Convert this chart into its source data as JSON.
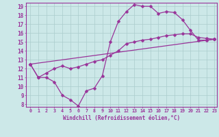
{
  "bg_color": "#cce8e8",
  "line_color": "#993399",
  "grid_color": "#aacccc",
  "xlabel": "Windchill (Refroidissement éolien,°C)",
  "xlabel_color": "#993399",
  "tick_color": "#993399",
  "xmin": 0,
  "xmax": 23,
  "ymin": 8,
  "ymax": 19,
  "line1_x": [
    0,
    1,
    2,
    3,
    4,
    5,
    6,
    7,
    8,
    9,
    10,
    11,
    12,
    13,
    14,
    15,
    16,
    17,
    18,
    19,
    20,
    21,
    22,
    23
  ],
  "line1_y": [
    12.5,
    11.0,
    11.0,
    10.5,
    9.0,
    8.5,
    7.8,
    9.5,
    9.8,
    11.2,
    15.0,
    17.3,
    18.4,
    19.2,
    19.0,
    19.0,
    18.2,
    18.4,
    18.3,
    17.5,
    16.3,
    15.2,
    15.2,
    15.3
  ],
  "line2_x": [
    0,
    1,
    2,
    3,
    4,
    5,
    6,
    7,
    8,
    9,
    10,
    11,
    12,
    13,
    14,
    15,
    16,
    17,
    18,
    19,
    20,
    21,
    22,
    23
  ],
  "line2_y": [
    12.5,
    11.0,
    11.5,
    12.0,
    12.3,
    12.0,
    12.2,
    12.5,
    12.8,
    13.0,
    13.5,
    14.0,
    14.8,
    15.0,
    15.2,
    15.3,
    15.5,
    15.7,
    15.8,
    15.9,
    15.9,
    15.5,
    15.4,
    15.3
  ],
  "line3_x": [
    0,
    23
  ],
  "line3_y": [
    12.5,
    15.3
  ],
  "marker": "D",
  "markersize": 2.5,
  "linewidth": 0.9,
  "xtick_labels": [
    "0",
    "1",
    "2",
    "3",
    "4",
    "5",
    "6",
    "7",
    "8",
    "9",
    "10",
    "11",
    "12",
    "13",
    "14",
    "15",
    "16",
    "17",
    "18",
    "19",
    "20",
    "21",
    "22",
    "23"
  ],
  "ytick_labels": [
    "8",
    "9",
    "10",
    "11",
    "12",
    "13",
    "14",
    "15",
    "16",
    "17",
    "18",
    "19"
  ]
}
